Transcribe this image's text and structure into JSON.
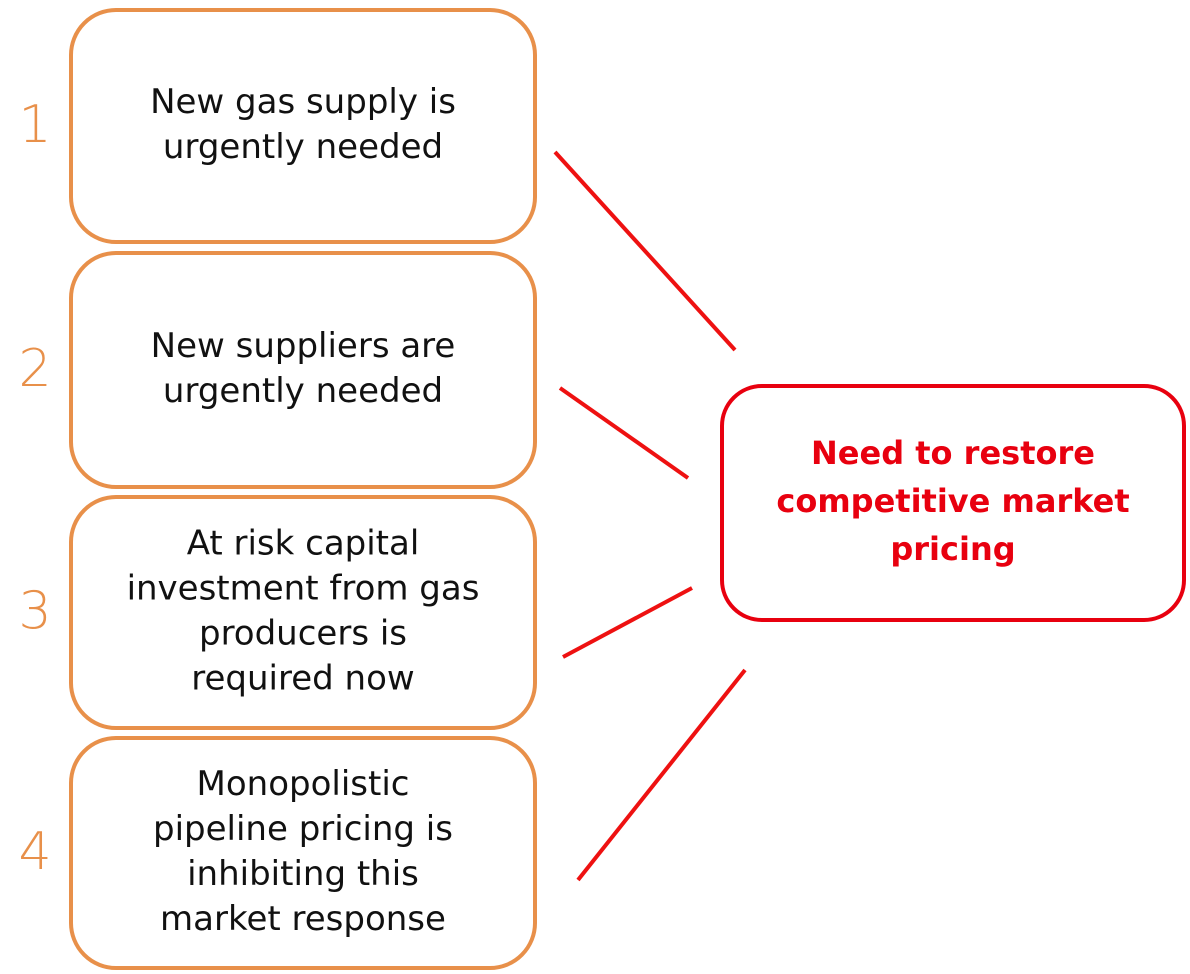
{
  "nodes": [
    {
      "number": "1",
      "lines": [
        "New gas supply is",
        "urgently needed"
      ]
    },
    {
      "number": "2",
      "lines": [
        "New suppliers are",
        "urgently needed"
      ]
    },
    {
      "number": "3",
      "lines": [
        "At risk capital",
        "investment from gas",
        "producers is",
        "required now"
      ]
    },
    {
      "number": "4",
      "lines": [
        "Monopolistic",
        "pipeline pricing is",
        "inhibiting this",
        "market response"
      ]
    }
  ],
  "target": {
    "lines": [
      "Need to restore",
      "competitive market",
      "pricing"
    ]
  }
}
